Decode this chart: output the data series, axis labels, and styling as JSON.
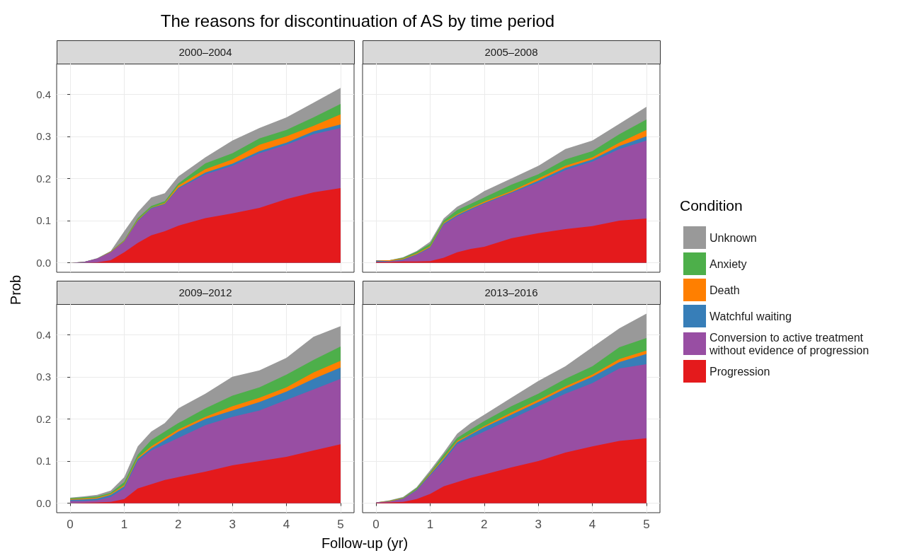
{
  "chart_data": [
    {
      "type": "area",
      "title": "The reasons for discontinuation of AS by time period",
      "subtitle": "2000–2004",
      "ylabel": "Prob",
      "stacked": true,
      "grid": true,
      "tick_labels": "y",
      "x": [
        0,
        0.25,
        0.5,
        0.75,
        1,
        1.25,
        1.5,
        1.75,
        2,
        2.5,
        3,
        3.5,
        4,
        4.5,
        5
      ],
      "xlim": [
        -0.25,
        5.25
      ],
      "xticks": [
        0,
        1,
        2,
        3,
        4,
        5
      ],
      "ylim": [
        -0.0225,
        0.4725
      ],
      "yticks": [
        {
          "value": 0,
          "label": "0.0"
        },
        {
          "value": 0.1,
          "label": "0.1"
        },
        {
          "value": 0.2,
          "label": "0.2"
        },
        {
          "value": 0.3,
          "label": "0.3"
        },
        {
          "value": 0.4,
          "label": "0.4"
        }
      ],
      "series": [
        {
          "color": "#e41a1c",
          "values": [
            0,
            0,
            0.001,
            0.006,
            0.025,
            0.047,
            0.065,
            0.075,
            0.088,
            0.106,
            0.117,
            0.13,
            0.151,
            0.167,
            0.177
          ]
        },
        {
          "color": "#984ea3",
          "values": [
            0,
            0.002,
            0.009,
            0.019,
            0.025,
            0.051,
            0.063,
            0.063,
            0.087,
            0.104,
            0.113,
            0.13,
            0.129,
            0.138,
            0.143
          ]
        },
        {
          "color": "#377eb8",
          "values": [
            0,
            0,
            0,
            0,
            0.001,
            0.002,
            0.002,
            0.002,
            0.003,
            0.004,
            0.005,
            0.005,
            0.005,
            0.007,
            0.008
          ]
        },
        {
          "color": "#ff7f00",
          "values": [
            0,
            0,
            0,
            0.001,
            0.001,
            0.002,
            0.001,
            0.002,
            0.005,
            0.008,
            0.01,
            0.015,
            0.015,
            0.013,
            0.024
          ]
        },
        {
          "color": "#4daf4a",
          "values": [
            0,
            0,
            0,
            0.001,
            0.002,
            0.004,
            0.004,
            0.004,
            0.005,
            0.014,
            0.015,
            0.015,
            0.015,
            0.02,
            0.025
          ]
        },
        {
          "color": "#999999",
          "values": [
            0,
            0,
            0.001,
            0.001,
            0.021,
            0.014,
            0.02,
            0.019,
            0.017,
            0.014,
            0.03,
            0.025,
            0.03,
            0.035,
            0.038
          ]
        }
      ]
    },
    {
      "type": "area",
      "subtitle": "2005–2008",
      "stacked": true,
      "grid": true,
      "tick_labels": false,
      "x": [
        0,
        0.25,
        0.5,
        0.75,
        1,
        1.25,
        1.5,
        1.75,
        2,
        2.5,
        3,
        3.5,
        4,
        4.5,
        5
      ],
      "xlim": [
        -0.25,
        5.25
      ],
      "xticks": [
        0,
        1,
        2,
        3,
        4,
        5
      ],
      "ylim": [
        -0.0225,
        0.4725
      ],
      "yticks": [
        0,
        0.1,
        0.2,
        0.3,
        0.4
      ],
      "series": [
        {
          "color": "#e41a1c",
          "values": [
            0.002,
            0.002,
            0.003,
            0.003,
            0.004,
            0.012,
            0.025,
            0.033,
            0.038,
            0.058,
            0.07,
            0.08,
            0.087,
            0.1,
            0.105
          ]
        },
        {
          "color": "#984ea3",
          "values": [
            0,
            0.001,
            0.003,
            0.015,
            0.031,
            0.078,
            0.085,
            0.092,
            0.102,
            0.107,
            0.12,
            0.14,
            0.153,
            0.17,
            0.185
          ]
        },
        {
          "color": "#377eb8",
          "values": [
            0.003,
            0.001,
            0.002,
            0.002,
            0.002,
            0.003,
            0.003,
            0.003,
            0.002,
            0.002,
            0.005,
            0.005,
            0.005,
            0.007,
            0.01
          ]
        },
        {
          "color": "#ff7f00",
          "values": [
            0.001,
            0.002,
            0.002,
            0.002,
            0.002,
            0.002,
            0.002,
            0.002,
            0.003,
            0.003,
            0.005,
            0.005,
            0.005,
            0.008,
            0.015
          ]
        },
        {
          "color": "#4daf4a",
          "values": [
            0,
            0,
            0.002,
            0.004,
            0.006,
            0.005,
            0.01,
            0.01,
            0.01,
            0.015,
            0.01,
            0.015,
            0.015,
            0.02,
            0.025
          ]
        },
        {
          "color": "#999999",
          "values": [
            0,
            0,
            0.001,
            0.002,
            0.005,
            0.005,
            0.008,
            0.01,
            0.015,
            0.015,
            0.02,
            0.025,
            0.025,
            0.025,
            0.03
          ]
        }
      ]
    },
    {
      "type": "area",
      "subtitle": "2009–2012",
      "xlabel": "Follow-up (yr)",
      "stacked": true,
      "grid": true,
      "x": [
        0,
        0.25,
        0.5,
        0.75,
        1,
        1.25,
        1.5,
        1.75,
        2,
        2.5,
        3,
        3.5,
        4,
        4.5,
        5
      ],
      "xlim": [
        -0.25,
        5.25
      ],
      "xticks": [
        0,
        1,
        2,
        3,
        4,
        5
      ],
      "ylim": [
        -0.0225,
        0.4725
      ],
      "yticks": [
        {
          "value": 0,
          "label": "0.0"
        },
        {
          "value": 0.1,
          "label": "0.1"
        },
        {
          "value": 0.2,
          "label": "0.2"
        },
        {
          "value": 0.3,
          "label": "0.3"
        },
        {
          "value": 0.4,
          "label": "0.4"
        }
      ],
      "series": [
        {
          "color": "#e41a1c",
          "values": [
            0,
            0.001,
            0.002,
            0.003,
            0.01,
            0.035,
            0.045,
            0.055,
            0.062,
            0.075,
            0.09,
            0.1,
            0.11,
            0.125,
            0.14
          ]
        },
        {
          "color": "#984ea3",
          "values": [
            0.005,
            0.004,
            0.005,
            0.012,
            0.025,
            0.065,
            0.08,
            0.085,
            0.093,
            0.11,
            0.115,
            0.12,
            0.135,
            0.145,
            0.155
          ]
        },
        {
          "color": "#377eb8",
          "values": [
            0.003,
            0.004,
            0.004,
            0.005,
            0.005,
            0.005,
            0.005,
            0.01,
            0.015,
            0.015,
            0.015,
            0.02,
            0.02,
            0.025,
            0.027
          ]
        },
        {
          "color": "#ff7f00",
          "values": [
            0.002,
            0.002,
            0.002,
            0.002,
            0.003,
            0.003,
            0.005,
            0.005,
            0.005,
            0.005,
            0.01,
            0.01,
            0.01,
            0.015,
            0.016
          ]
        },
        {
          "color": "#4daf4a",
          "values": [
            0.002,
            0.003,
            0.003,
            0.003,
            0.007,
            0.007,
            0.015,
            0.015,
            0.015,
            0.02,
            0.025,
            0.025,
            0.03,
            0.03,
            0.034
          ]
        },
        {
          "color": "#999999",
          "values": [
            0.001,
            0.002,
            0.004,
            0.005,
            0.012,
            0.02,
            0.02,
            0.02,
            0.035,
            0.035,
            0.045,
            0.04,
            0.04,
            0.055,
            0.048
          ]
        }
      ]
    },
    {
      "type": "area",
      "subtitle": "2013–2016",
      "legend_title": "Condition",
      "legend": "right",
      "stacked": true,
      "grid": true,
      "tick_labels": "x",
      "x": [
        0,
        0.25,
        0.5,
        0.75,
        1,
        1.25,
        1.5,
        1.75,
        2,
        2.5,
        3,
        3.5,
        4,
        4.5,
        5
      ],
      "xlim": [
        -0.25,
        5.25
      ],
      "xticks": [
        0,
        1,
        2,
        3,
        4,
        5
      ],
      "ylim": [
        -0.0225,
        0.4725
      ],
      "yticks": [
        0,
        0.1,
        0.2,
        0.3,
        0.4
      ],
      "series": [
        {
          "name": "Progression",
          "color": "#e41a1c",
          "values": [
            0.001,
            0.002,
            0.003,
            0.01,
            0.022,
            0.04,
            0.05,
            0.06,
            0.068,
            0.085,
            0.1,
            0.12,
            0.135,
            0.148,
            0.154
          ]
        },
        {
          "name": "Conversion to active treatment without evidence of progression",
          "color": "#984ea3",
          "values": [
            0.001,
            0.002,
            0.007,
            0.02,
            0.043,
            0.06,
            0.09,
            0.095,
            0.102,
            0.115,
            0.13,
            0.14,
            0.15,
            0.172,
            0.176
          ]
        },
        {
          "name": "Watchful waiting",
          "color": "#377eb8",
          "values": [
            0,
            0,
            0.001,
            0.002,
            0.003,
            0.005,
            0.005,
            0.008,
            0.01,
            0.01,
            0.01,
            0.012,
            0.015,
            0.015,
            0.024
          ]
        },
        {
          "name": "Death",
          "color": "#ff7f00",
          "values": [
            0,
            0.001,
            0.001,
            0.001,
            0.002,
            0.003,
            0.003,
            0.002,
            0.003,
            0.005,
            0.005,
            0.005,
            0.005,
            0.007,
            0.008
          ]
        },
        {
          "name": "Anxiety",
          "color": "#4daf4a",
          "values": [
            0,
            0.001,
            0.001,
            0.003,
            0.003,
            0.007,
            0.007,
            0.01,
            0.012,
            0.015,
            0.015,
            0.018,
            0.02,
            0.028,
            0.03
          ]
        },
        {
          "name": "Unknown",
          "color": "#999999",
          "values": [
            0,
            0.001,
            0.002,
            0.002,
            0.005,
            0.005,
            0.01,
            0.015,
            0.015,
            0.02,
            0.03,
            0.03,
            0.045,
            0.045,
            0.058
          ]
        }
      ]
    }
  ]
}
